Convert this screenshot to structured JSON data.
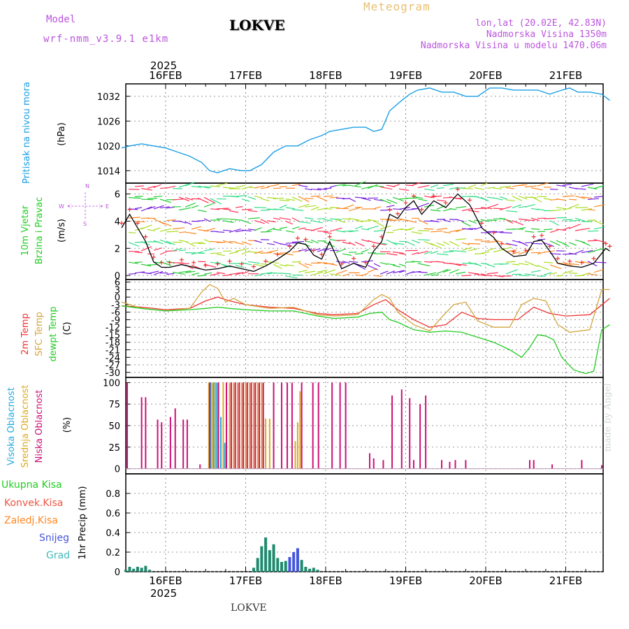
{
  "header": {
    "model_label": "Model",
    "model_name": "wrf-nmm_v3.9.1 e1km",
    "title": "LOKVE",
    "meteogram": "Meteogram",
    "lonlat": "lon,lat (20.02E, 42.83N)",
    "elev": "Nadmorska Visina 1350m",
    "elev_model": "Nadmorska Visina u modelu 1470.06m"
  },
  "footer": {
    "station": "LOKVE",
    "credit": "made by Angel"
  },
  "colors": {
    "pressure": "#1aa0e6",
    "t2m": "#ee3333",
    "sfc": "#d4a640",
    "dew": "#22cc22",
    "high": "#22aadd",
    "mid": "#ddaa22",
    "low": "#cc1177",
    "precip": "#1f8a6e",
    "snow": "#4455dd",
    "conv": "#ee5544",
    "frz": "#ff8822",
    "grad": "#44bbbb"
  },
  "chart_data": [
    {
      "type": "line",
      "panel": "pressure",
      "ylabel": [
        "Pritisak na nivou mora",
        "(hPa)"
      ],
      "yticks": [
        1014,
        1020,
        1026,
        1032
      ],
      "ylim": [
        1011,
        1035
      ],
      "x_day": [
        -0.55,
        -0.45,
        -0.3,
        -0.15,
        0.0,
        0.15,
        0.3,
        0.45,
        0.55,
        0.65,
        0.8,
        0.95,
        1.05,
        1.2,
        1.35,
        1.5,
        1.65,
        1.8,
        1.95,
        2.05,
        2.2,
        2.35,
        2.5,
        2.6,
        2.7,
        2.8,
        2.95,
        3.05,
        3.15,
        3.3,
        3.45,
        3.6,
        3.75,
        3.9,
        4.05,
        4.2,
        4.35,
        4.5,
        4.65,
        4.8,
        4.95,
        5.05,
        5.15,
        5.3,
        5.45,
        5.55
      ],
      "values": [
        1019.5,
        1020.0,
        1020.5,
        1020.0,
        1019.5,
        1018.5,
        1017.5,
        1016.0,
        1014.0,
        1013.5,
        1014.5,
        1014.0,
        1014.0,
        1015.5,
        1018.5,
        1020.0,
        1020.0,
        1021.5,
        1022.5,
        1023.5,
        1024.0,
        1024.5,
        1024.5,
        1023.5,
        1024.0,
        1028.5,
        1031.0,
        1032.5,
        1033.5,
        1034.0,
        1033.0,
        1033.0,
        1032.0,
        1032.0,
        1034.0,
        1034.0,
        1033.5,
        1033.5,
        1033.5,
        1032.5,
        1033.5,
        1034.0,
        1033.0,
        1033.0,
        1032.5,
        1031.0
      ]
    },
    {
      "type": "line",
      "panel": "wind",
      "ylabel": [
        "10m Vjetar",
        "Brzina i Pravac",
        "(m/s)"
      ],
      "compass": [
        "N",
        "S",
        "W",
        "E"
      ],
      "yticks": [
        0,
        2,
        4,
        6
      ],
      "ylim": [
        -0.3,
        6.8
      ],
      "series": [
        {
          "name": "wind_speed",
          "x_day": [
            -0.55,
            -0.45,
            -0.35,
            -0.25,
            -0.15,
            -0.05,
            0.05,
            0.2,
            0.35,
            0.5,
            0.65,
            0.8,
            0.95,
            1.1,
            1.25,
            1.4,
            1.55,
            1.65,
            1.75,
            1.85,
            1.95,
            2.05,
            2.2,
            2.35,
            2.5,
            2.6,
            2.7,
            2.8,
            2.9,
            3.0,
            3.1,
            3.2,
            3.35,
            3.5,
            3.65,
            3.8,
            3.95,
            4.1,
            4.2,
            4.35,
            4.5,
            4.6,
            4.7,
            4.8,
            4.9,
            5.05,
            5.2,
            5.35,
            5.5,
            5.55
          ],
          "values": [
            3.5,
            4.5,
            3.5,
            2.5,
            1.0,
            0.6,
            0.6,
            0.8,
            0.6,
            0.4,
            0.5,
            0.7,
            0.5,
            0.3,
            0.7,
            1.2,
            1.8,
            2.4,
            2.3,
            1.5,
            1.2,
            2.5,
            0.5,
            0.9,
            0.6,
            1.8,
            2.5,
            4.5,
            4.2,
            5.0,
            5.5,
            4.5,
            5.5,
            5.0,
            6.0,
            5.2,
            3.5,
            2.8,
            2.0,
            1.4,
            1.5,
            2.5,
            2.6,
            1.8,
            0.9,
            0.7,
            0.6,
            0.9,
            2.0,
            1.8
          ]
        }
      ]
    },
    {
      "type": "line",
      "panel": "temperature",
      "ylabel": [
        "2m Temp",
        "SFC Temp",
        "dewpt Temp",
        "(C)"
      ],
      "yticks": [
        6,
        3,
        0,
        -3,
        -6,
        -9,
        -12,
        -15,
        -18,
        -21,
        -24,
        -27,
        -30
      ],
      "ylim": [
        -32,
        7
      ],
      "series": [
        {
          "name": "2m Temp",
          "x_day": [
            -0.55,
            -0.3,
            0.0,
            0.3,
            0.5,
            0.65,
            0.8,
            1.0,
            1.3,
            1.6,
            1.9,
            2.1,
            2.4,
            2.6,
            2.75,
            2.9,
            3.1,
            3.3,
            3.5,
            3.7,
            3.9,
            4.1,
            4.4,
            4.6,
            4.8,
            5.0,
            5.3,
            5.55
          ],
          "values": [
            -3.5,
            -4.0,
            -5.0,
            -4.5,
            -1.5,
            0.0,
            -1.5,
            -3.0,
            -4.0,
            -4.5,
            -6.5,
            -7.0,
            -6.5,
            -3.0,
            -1.0,
            -5.0,
            -9.0,
            -12.0,
            -11.0,
            -6.0,
            -8.5,
            -9.0,
            -9.0,
            -4.0,
            -6.5,
            -7.5,
            -7.0,
            -0.5
          ]
        },
        {
          "name": "SFC Temp",
          "x_day": [
            -0.55,
            -0.3,
            0.0,
            0.3,
            0.45,
            0.55,
            0.65,
            0.75,
            0.85,
            1.0,
            1.3,
            1.6,
            1.9,
            2.1,
            2.4,
            2.6,
            2.7,
            2.8,
            2.9,
            3.1,
            3.3,
            3.45,
            3.6,
            3.75,
            3.9,
            4.1,
            4.3,
            4.45,
            4.6,
            4.75,
            4.9,
            5.05,
            5.3,
            5.45,
            5.55
          ],
          "values": [
            -2.0,
            -4.5,
            -5.5,
            -4.5,
            2.0,
            5.0,
            3.5,
            -2.0,
            -0.5,
            -3.0,
            -4.5,
            -4.0,
            -7.0,
            -7.5,
            -7.0,
            -1.0,
            1.0,
            -0.5,
            -6.0,
            -11.0,
            -13.5,
            -8.0,
            -3.0,
            -2.0,
            -9.5,
            -12.0,
            -12.0,
            -3.0,
            -0.5,
            -1.5,
            -11.0,
            -14.0,
            -13.0,
            3.0,
            3.0
          ]
        },
        {
          "name": "dewpt Temp",
          "x_day": [
            -0.55,
            -0.3,
            0.0,
            0.3,
            0.5,
            0.65,
            0.8,
            1.0,
            1.3,
            1.6,
            1.9,
            2.1,
            2.4,
            2.55,
            2.7,
            2.8,
            2.9,
            3.1,
            3.3,
            3.5,
            3.7,
            3.9,
            4.1,
            4.3,
            4.45,
            4.55,
            4.65,
            4.75,
            4.85,
            4.95,
            5.1,
            5.25,
            5.35,
            5.45,
            5.55
          ],
          "values": [
            -3.5,
            -4.5,
            -5.5,
            -5.0,
            -4.5,
            -4.0,
            -4.5,
            -5.0,
            -5.5,
            -5.5,
            -7.5,
            -8.5,
            -8.0,
            -6.5,
            -6.0,
            -9.0,
            -10.0,
            -13.0,
            -14.0,
            -13.5,
            -14.0,
            -16.0,
            -18.0,
            -21.0,
            -24.0,
            -20.0,
            -15.0,
            -15.5,
            -17.0,
            -24.0,
            -29.0,
            -30.5,
            -29.5,
            -13.0,
            -11.0
          ]
        }
      ]
    },
    {
      "type": "bar",
      "panel": "clouds",
      "ylabel": [
        "Visoka Oblacnost",
        "Srednja Oblacnost",
        "Niska Oblacnost",
        "(%)"
      ],
      "yticks": [
        0,
        25,
        50,
        75,
        100
      ],
      "ylim": [
        -6,
        106
      ],
      "series": [
        {
          "name": "Visoka Oblacnost",
          "x_day": [
            0.56,
            0.6,
            0.64,
            0.69,
            0.74
          ],
          "values": [
            100,
            100,
            100,
            60,
            30
          ]
        },
        {
          "name": "Srednja Oblacnost",
          "x_day": [
            0.54,
            0.58,
            0.62,
            0.72,
            0.8,
            0.85,
            0.9,
            0.95,
            1.0,
            1.05,
            1.1,
            1.15,
            1.2,
            1.25,
            1.3,
            1.62,
            1.65,
            1.68
          ],
          "values": [
            100,
            100,
            100,
            100,
            100,
            100,
            100,
            100,
            100,
            100,
            100,
            100,
            100,
            58,
            58,
            32,
            54,
            90
          ]
        },
        {
          "name": "Niska Oblacnost",
          "x_day": [
            -0.48,
            -0.3,
            -0.25,
            -0.1,
            -0.05,
            0.06,
            0.12,
            0.22,
            0.27,
            0.43,
            0.55,
            0.66,
            0.76,
            0.82,
            0.87,
            0.92,
            0.97,
            1.02,
            1.07,
            1.12,
            1.17,
            1.22,
            1.35,
            1.45,
            1.52,
            1.58,
            1.7,
            1.84,
            1.91,
            2.08,
            2.18,
            2.25,
            2.55,
            2.6,
            2.72,
            2.83,
            2.95,
            3.05,
            3.1,
            3.18,
            3.25,
            3.45,
            3.55,
            3.62,
            3.75,
            4.55,
            4.6,
            4.83,
            5.2,
            5.45
          ],
          "values": [
            100,
            83,
            83,
            57,
            54,
            60,
            70,
            57,
            57,
            5,
            100,
            100,
            100,
            100,
            100,
            100,
            100,
            100,
            100,
            100,
            100,
            100,
            100,
            100,
            100,
            100,
            100,
            100,
            100,
            100,
            100,
            100,
            18,
            12,
            10,
            85,
            92,
            82,
            10,
            75,
            85,
            10,
            8,
            10,
            10,
            10,
            10,
            5,
            10,
            4
          ]
        }
      ]
    },
    {
      "type": "bar",
      "panel": "precip",
      "ylabel": [
        "1hr Precip (mm)"
      ],
      "legend": [
        "Ukupna Kisa",
        "Konvek.Kisa",
        "Zaledj.Kisa",
        "Snijeg",
        "Grad"
      ],
      "yticks": [
        0,
        0.2,
        0.4,
        0.6,
        0.8
      ],
      "ylim": [
        0,
        1.0
      ],
      "x_day": [
        -0.5,
        -0.45,
        -0.4,
        -0.35,
        -0.3,
        -0.25,
        -0.2,
        1.1,
        1.15,
        1.2,
        1.25,
        1.3,
        1.35,
        1.4,
        1.45,
        1.5,
        1.55,
        1.6,
        1.65,
        1.7,
        1.75,
        1.8,
        1.85,
        1.9
      ],
      "values": [
        0.02,
        0.05,
        0.03,
        0.05,
        0.04,
        0.06,
        0.02,
        0.04,
        0.14,
        0.26,
        0.35,
        0.22,
        0.28,
        0.14,
        0.1,
        0.11,
        0.15,
        0.2,
        0.24,
        0.12,
        0.05,
        0.03,
        0.04,
        0.02
      ]
    }
  ],
  "axis": {
    "top_year": "2025",
    "bottom_year": "2025",
    "day_labels": [
      "16FEB",
      "17FEB",
      "18FEB",
      "19FEB",
      "20FEB",
      "21FEB"
    ]
  }
}
